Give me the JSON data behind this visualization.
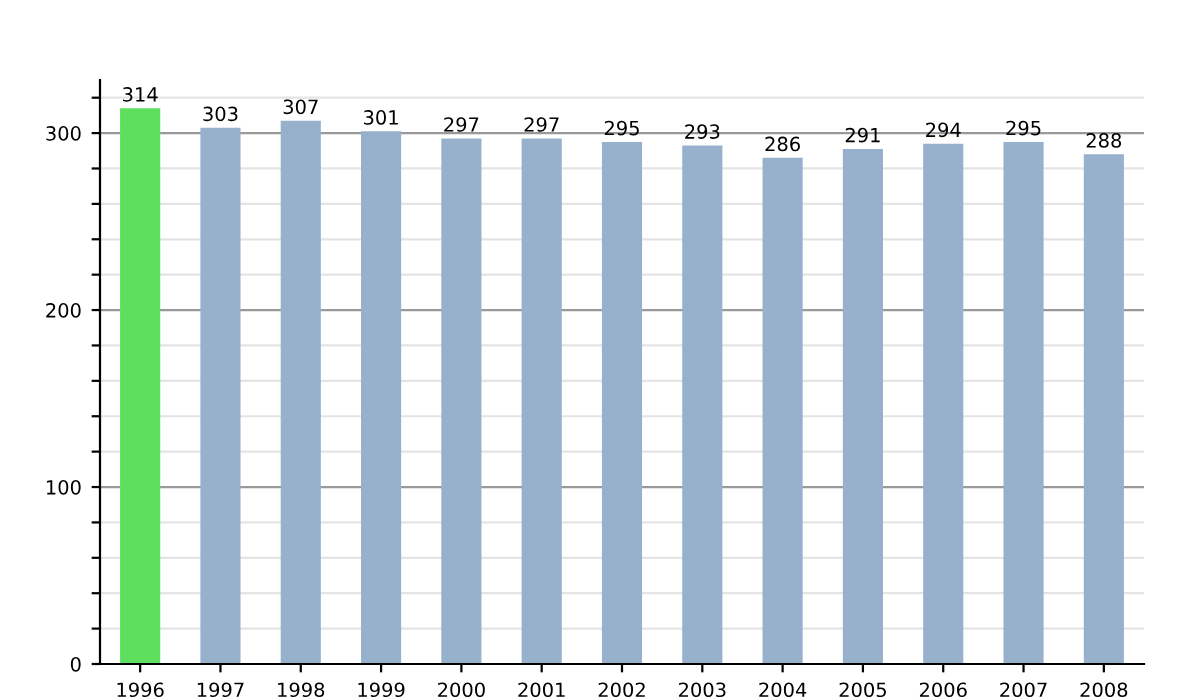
{
  "chart_data": {
    "type": "bar",
    "categories": [
      "1996",
      "1997",
      "1998",
      "1999",
      "2000",
      "2001",
      "2002",
      "2003",
      "2004",
      "2005",
      "2006",
      "2007",
      "2008"
    ],
    "values": [
      314,
      303,
      307,
      301,
      297,
      297,
      295,
      293,
      286,
      291,
      294,
      295,
      288
    ],
    "colors": [
      "#5ee05e",
      "#97b1cc",
      "#97b1cc",
      "#97b1cc",
      "#97b1cc",
      "#97b1cc",
      "#97b1cc",
      "#97b1cc",
      "#97b1cc",
      "#97b1cc",
      "#97b1cc",
      "#97b1cc",
      "#97b1cc"
    ],
    "ylim": [
      0,
      330
    ],
    "yticks": [
      0,
      {
        "value": 20,
        "label": null
      },
      {
        "value": 40,
        "label": null
      },
      {
        "value": 60,
        "label": null
      },
      {
        "value": 80,
        "label": null
      },
      100,
      {
        "value": 120,
        "label": null
      },
      {
        "value": 140,
        "label": null
      },
      {
        "value": 160,
        "label": null
      },
      {
        "value": 180,
        "label": null
      },
      200,
      {
        "value": 220,
        "label": null
      },
      {
        "value": 240,
        "label": null
      },
      {
        "value": 260,
        "label": null
      },
      {
        "value": 280,
        "label": null
      },
      300,
      {
        "value": 320,
        "label": null
      }
    ],
    "grid": true,
    "data_labels": true
  }
}
